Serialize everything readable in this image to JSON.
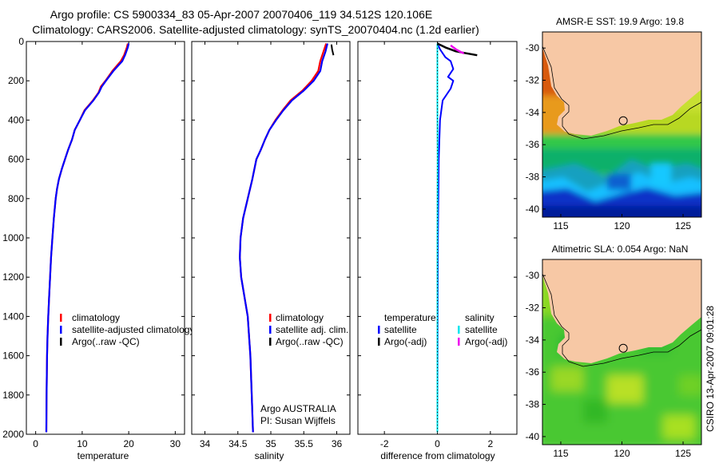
{
  "title": {
    "line1": "Argo profile: CS 5900334_83 05-Apr-2007 20070406_119 34.512S 120.106E",
    "line2": "Climatology: CARS2006. Satellite-adjusted climatology: synTS_20070404.nc (1.2d earlier)"
  },
  "colors": {
    "climatology": "#ff0000",
    "satellite": "#0000ff",
    "argo": "#000000",
    "sal_satellite": "#00e5ee",
    "sal_argo": "#ee00ee",
    "land": "#f7c8a5",
    "coast": "#000000"
  },
  "side_text": "CSIRO 13-Apr-2007 09:01:28",
  "chart_data": [
    {
      "type": "line",
      "name": "temperature-profile",
      "xlabel": "temperature",
      "xlim": [
        -2,
        32
      ],
      "ylim": [
        2000,
        0
      ],
      "xticks": [
        0,
        10,
        20,
        30
      ],
      "xtick_labels": [
        "0",
        "10",
        "20",
        "30"
      ],
      "yticks": [
        0,
        200,
        400,
        600,
        800,
        1000,
        1200,
        1400,
        1600,
        1800,
        2000
      ],
      "ytick_labels": [
        "0",
        "200",
        "400",
        "600",
        "800",
        "1000",
        "1200",
        "1400",
        "1600",
        "1800",
        "2000"
      ],
      "series": [
        {
          "name": "climatology",
          "color": "#ff0000",
          "width": 2.2,
          "x": [
            19.8,
            19.6,
            19.0,
            18.3,
            16.5,
            15.0,
            14.0,
            13.5,
            12.3,
            10.5,
            9.5,
            8.4,
            7.8,
            7.0,
            6.3,
            5.6,
            5.0,
            4.6,
            4.3,
            3.9,
            3.6,
            3.3,
            3.1,
            2.9,
            2.7,
            2.55,
            2.45,
            2.35,
            2.3
          ],
          "y": [
            10,
            30,
            70,
            100,
            150,
            200,
            230,
            260,
            300,
            350,
            400,
            450,
            500,
            550,
            600,
            650,
            700,
            750,
            800,
            900,
            1000,
            1100,
            1200,
            1300,
            1400,
            1500,
            1600,
            1800,
            1990
          ]
        },
        {
          "name": "satellite-adjusted climatology",
          "color": "#0000ff",
          "width": 2.2,
          "x": [
            20.0,
            19.8,
            19.2,
            18.6,
            16.7,
            15.1,
            14.2,
            13.6,
            12.4,
            10.6,
            9.5,
            8.4,
            7.8,
            7.0,
            6.3,
            5.6,
            5.0,
            4.6,
            4.3,
            3.9,
            3.6,
            3.3,
            3.1,
            2.9,
            2.7,
            2.55,
            2.45,
            2.35,
            2.3
          ],
          "y": [
            10,
            30,
            70,
            100,
            150,
            200,
            230,
            260,
            300,
            350,
            400,
            450,
            500,
            550,
            600,
            650,
            700,
            750,
            800,
            900,
            1000,
            1100,
            1200,
            1300,
            1400,
            1500,
            1600,
            1800,
            1990
          ]
        }
      ],
      "legend": {
        "position": "lower-left",
        "entries": [
          {
            "label": "climatology",
            "color": "#ff0000"
          },
          {
            "label": "satellite-adjusted climatology",
            "color": "#0000ff"
          },
          {
            "label": "Argo(..raw -QC)",
            "color": "#000000"
          }
        ]
      }
    },
    {
      "type": "line",
      "name": "salinity-profile",
      "xlabel": "salinity",
      "xlim": [
        33.8,
        36.2
      ],
      "ylim": [
        2000,
        0
      ],
      "xticks": [
        34,
        34.5,
        35,
        35.5,
        36
      ],
      "xtick_labels": [
        "34",
        "34.5",
        "35",
        "35.5",
        "36"
      ],
      "series": [
        {
          "name": "climatology",
          "color": "#ff0000",
          "width": 2.2,
          "x": [
            35.84,
            35.8,
            35.75,
            35.72,
            35.62,
            35.48,
            35.3,
            35.18,
            35.07,
            34.98,
            34.91,
            34.85,
            34.78,
            34.72,
            34.65,
            34.58,
            34.54,
            34.53,
            34.55,
            34.6,
            34.65,
            34.69,
            34.71,
            34.73
          ],
          "y": [
            10,
            50,
            100,
            150,
            200,
            250,
            300,
            350,
            400,
            450,
            500,
            550,
            600,
            700,
            800,
            900,
            1000,
            1100,
            1200,
            1300,
            1400,
            1600,
            1800,
            1990
          ]
        },
        {
          "name": "satellite adj. clim.",
          "color": "#0000ff",
          "width": 2.2,
          "x": [
            35.86,
            35.83,
            35.78,
            35.75,
            35.65,
            35.5,
            35.32,
            35.19,
            35.08,
            34.98,
            34.91,
            34.85,
            34.78,
            34.72,
            34.65,
            34.58,
            34.54,
            34.53,
            34.55,
            34.6,
            34.65,
            34.69,
            34.71,
            34.73
          ],
          "y": [
            10,
            50,
            100,
            150,
            200,
            250,
            300,
            350,
            400,
            450,
            500,
            550,
            600,
            700,
            800,
            900,
            1000,
            1100,
            1200,
            1300,
            1400,
            1600,
            1800,
            1990
          ]
        },
        {
          "name": "Argo(..raw -QC)",
          "color": "#000000",
          "width": 2.0,
          "x": [
            35.92,
            35.93,
            35.95
          ],
          "y": [
            15,
            40,
            70
          ]
        }
      ],
      "legend": {
        "position": "lower-right",
        "entries": [
          {
            "label": "climatology",
            "color": "#ff0000"
          },
          {
            "label": "satellite adj. clim.",
            "color": "#0000ff"
          },
          {
            "label": "Argo(..raw -QC)",
            "color": "#000000"
          }
        ]
      },
      "annotation": [
        "Argo AUSTRALIA",
        "PI: Susan Wijffels"
      ]
    },
    {
      "type": "line",
      "name": "difference-profile",
      "xlabel": "difference from climatology",
      "xlim": [
        -3,
        3
      ],
      "ylim": [
        2000,
        0
      ],
      "xticks": [
        -2,
        0,
        2
      ],
      "xtick_labels": [
        "-2",
        "0",
        "2"
      ],
      "series": [
        {
          "name": "temperature satellite",
          "color": "#0000ff",
          "width": 2.0,
          "x": [
            0.0,
            0.1,
            0.3,
            0.5,
            0.6,
            0.4,
            0.6,
            0.5,
            0.2,
            0.1,
            0.05,
            0.02,
            0.01,
            0.0
          ],
          "y": [
            10,
            40,
            80,
            100,
            140,
            180,
            200,
            240,
            300,
            400,
            600,
            1000,
            1500,
            1990
          ]
        },
        {
          "name": "salinity satellite",
          "color": "#00e5ee",
          "width": 2.0,
          "x": [
            0.0,
            0.0,
            0.0,
            0.01,
            0.0,
            0.0,
            0.0
          ],
          "y": [
            10,
            100,
            300,
            600,
            1000,
            1500,
            1990
          ]
        },
        {
          "name": "Argo(-adj) temperature",
          "color": "#000000",
          "width": 2.5,
          "x": [
            0.0,
            0.3,
            0.7,
            1.1,
            1.5
          ],
          "y": [
            10,
            30,
            50,
            60,
            70
          ]
        },
        {
          "name": "Argo(-adj) salinity",
          "color": "#ee00ee",
          "width": 2.5,
          "x": [
            0.5,
            0.7,
            0.9,
            1.0
          ],
          "y": [
            20,
            40,
            55,
            60
          ]
        }
      ],
      "legend": {
        "position": "lower-left",
        "columns": [
          {
            "heading": "temperature",
            "entries": [
              {
                "label": "satellite",
                "color": "#0000ff"
              },
              {
                "label": "Argo(-adj)",
                "color": "#000000"
              }
            ]
          },
          {
            "heading": "salinity",
            "entries": [
              {
                "label": "satellite",
                "color": "#00e5ee"
              },
              {
                "label": "Argo(-adj)",
                "color": "#ee00ee"
              }
            ]
          }
        ]
      }
    },
    {
      "type": "heatmap",
      "name": "sst-map",
      "title": "AMSR-E SST: 19.9 Argo: 19.8",
      "xlim": [
        113.5,
        126.5
      ],
      "ylim": [
        -40.5,
        -29
      ],
      "xticks": [
        115,
        120,
        125
      ],
      "xtick_labels": [
        "115",
        "120",
        "125"
      ],
      "yticks": [
        -30,
        -32,
        -34,
        -36,
        -38,
        -40
      ],
      "ytick_labels": [
        "-30",
        "-32",
        "-34",
        "-36",
        "-38",
        "-40"
      ],
      "argo_position": {
        "lon": 120.106,
        "lat": -34.512
      }
    },
    {
      "type": "heatmap",
      "name": "sla-map",
      "title": "Altimetric SLA: 0.054 Argo: NaN",
      "xlim": [
        113.5,
        126.5
      ],
      "ylim": [
        -40.5,
        -29
      ],
      "xticks": [
        115,
        120,
        125
      ],
      "xtick_labels": [
        "115",
        "120",
        "125"
      ],
      "yticks": [
        -30,
        -32,
        -34,
        -36,
        -38,
        -40
      ],
      "ytick_labels": [
        "-30",
        "-32",
        "-34",
        "-36",
        "-38",
        "-40"
      ],
      "argo_position": {
        "lon": 120.106,
        "lat": -34.512
      }
    }
  ]
}
